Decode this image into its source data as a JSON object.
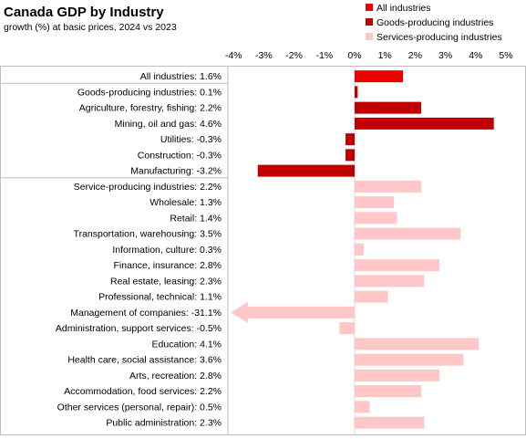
{
  "chart_data": {
    "type": "bar",
    "orientation": "horizontal",
    "title": "Canada GDP by Industry",
    "subtitle": "growth (%) at basic prices, 2024 vs 2023",
    "xlim": [
      -4,
      5
    ],
    "xticks": [
      -4,
      -3,
      -2,
      -1,
      0,
      1,
      2,
      3,
      4,
      5
    ],
    "xtick_labels": [
      "-4%",
      "-3%",
      "-2%",
      "-1%",
      "0%",
      "1%",
      "2%",
      "3%",
      "4%",
      "5%"
    ],
    "legend": {
      "position": "top-right",
      "entries": [
        {
          "name": "All industries",
          "color": "#ee0000"
        },
        {
          "name": "Goods-producing industries",
          "color": "#c00000"
        },
        {
          "name": "Services-producing industries",
          "color": "#ffc7c7"
        }
      ]
    },
    "categories": [
      {
        "label": "All industries: 1.6%",
        "value": 1.6,
        "group": 0
      },
      {
        "label": "Goods-producing industries: 0.1%",
        "value": 0.1,
        "group": 1
      },
      {
        "label": "Agriculture, forestry, fishing: 2.2%",
        "value": 2.2,
        "group": 1
      },
      {
        "label": "Mining, oil and gas: 4.6%",
        "value": 4.6,
        "group": 1
      },
      {
        "label": "Utilities: -0.3%",
        "value": -0.3,
        "group": 1
      },
      {
        "label": "Construction: -0.3%",
        "value": -0.3,
        "group": 1
      },
      {
        "label": "Manufacturing: -3.2%",
        "value": -3.2,
        "group": 1
      },
      {
        "label": "Service-producing industries: 2.2%",
        "value": 2.2,
        "group": 2
      },
      {
        "label": "Wholesale: 1.3%",
        "value": 1.3,
        "group": 2
      },
      {
        "label": "Retail: 1.4%",
        "value": 1.4,
        "group": 2
      },
      {
        "label": "Transportation, warehousing: 3.5%",
        "value": 3.5,
        "group": 2
      },
      {
        "label": "Information, culture: 0.3%",
        "value": 0.3,
        "group": 2
      },
      {
        "label": "Finance, insurance: 2.8%",
        "value": 2.8,
        "group": 2
      },
      {
        "label": "Real estate, leasing: 2.3%",
        "value": 2.3,
        "group": 2
      },
      {
        "label": "Professional, technical: 1.1%",
        "value": 1.1,
        "group": 2
      },
      {
        "label": "Management of companies: -31.1%",
        "value": -31.1,
        "group": 2,
        "truncated": true
      },
      {
        "label": "Administration, support services: -0.5%",
        "value": -0.5,
        "group": 2
      },
      {
        "label": "Education: 4.1%",
        "value": 4.1,
        "group": 2
      },
      {
        "label": "Health care, social assistance: 3.6%",
        "value": 3.6,
        "group": 2
      },
      {
        "label": "Arts, recreation: 2.8%",
        "value": 2.8,
        "group": 2
      },
      {
        "label": "Accommodation, food services: 2.2%",
        "value": 2.2,
        "group": 2
      },
      {
        "label": "Other services (personal, repair): 0.5%",
        "value": 0.5,
        "group": 2
      },
      {
        "label": "Public administration: 2.3%",
        "value": 2.3,
        "group": 2
      }
    ],
    "grid": false
  }
}
